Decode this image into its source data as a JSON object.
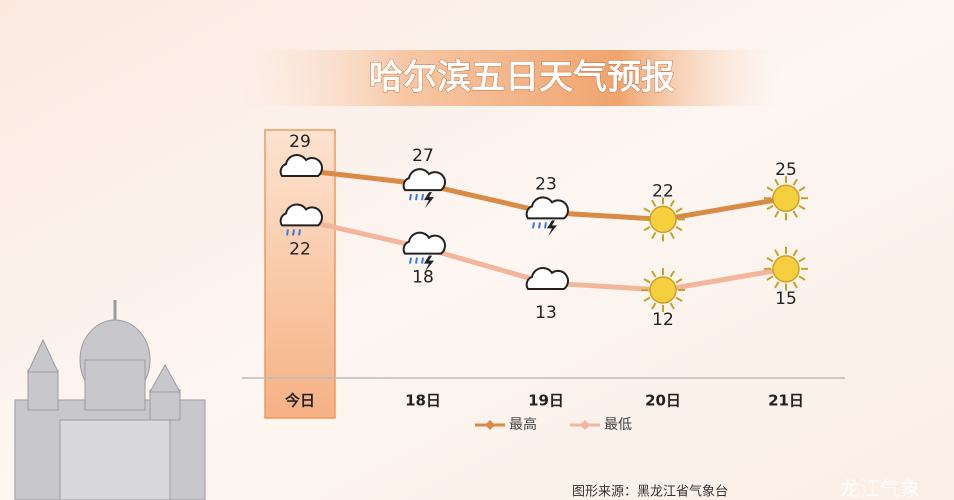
{
  "chart_data": {
    "type": "line",
    "title": "哈尔滨五日天气预报",
    "categories": [
      "今日",
      "18日",
      "19日",
      "20日",
      "21日"
    ],
    "series": [
      {
        "name": "最高",
        "color": "#d98a45",
        "values": [
          29,
          27,
          23,
          22,
          25
        ]
      },
      {
        "name": "最低",
        "color": "#f3b59b",
        "values": [
          22,
          18,
          13,
          12,
          15
        ]
      }
    ],
    "source": "图形来源：黑龙江省气象台",
    "watermark": "龙江气象"
  }
}
